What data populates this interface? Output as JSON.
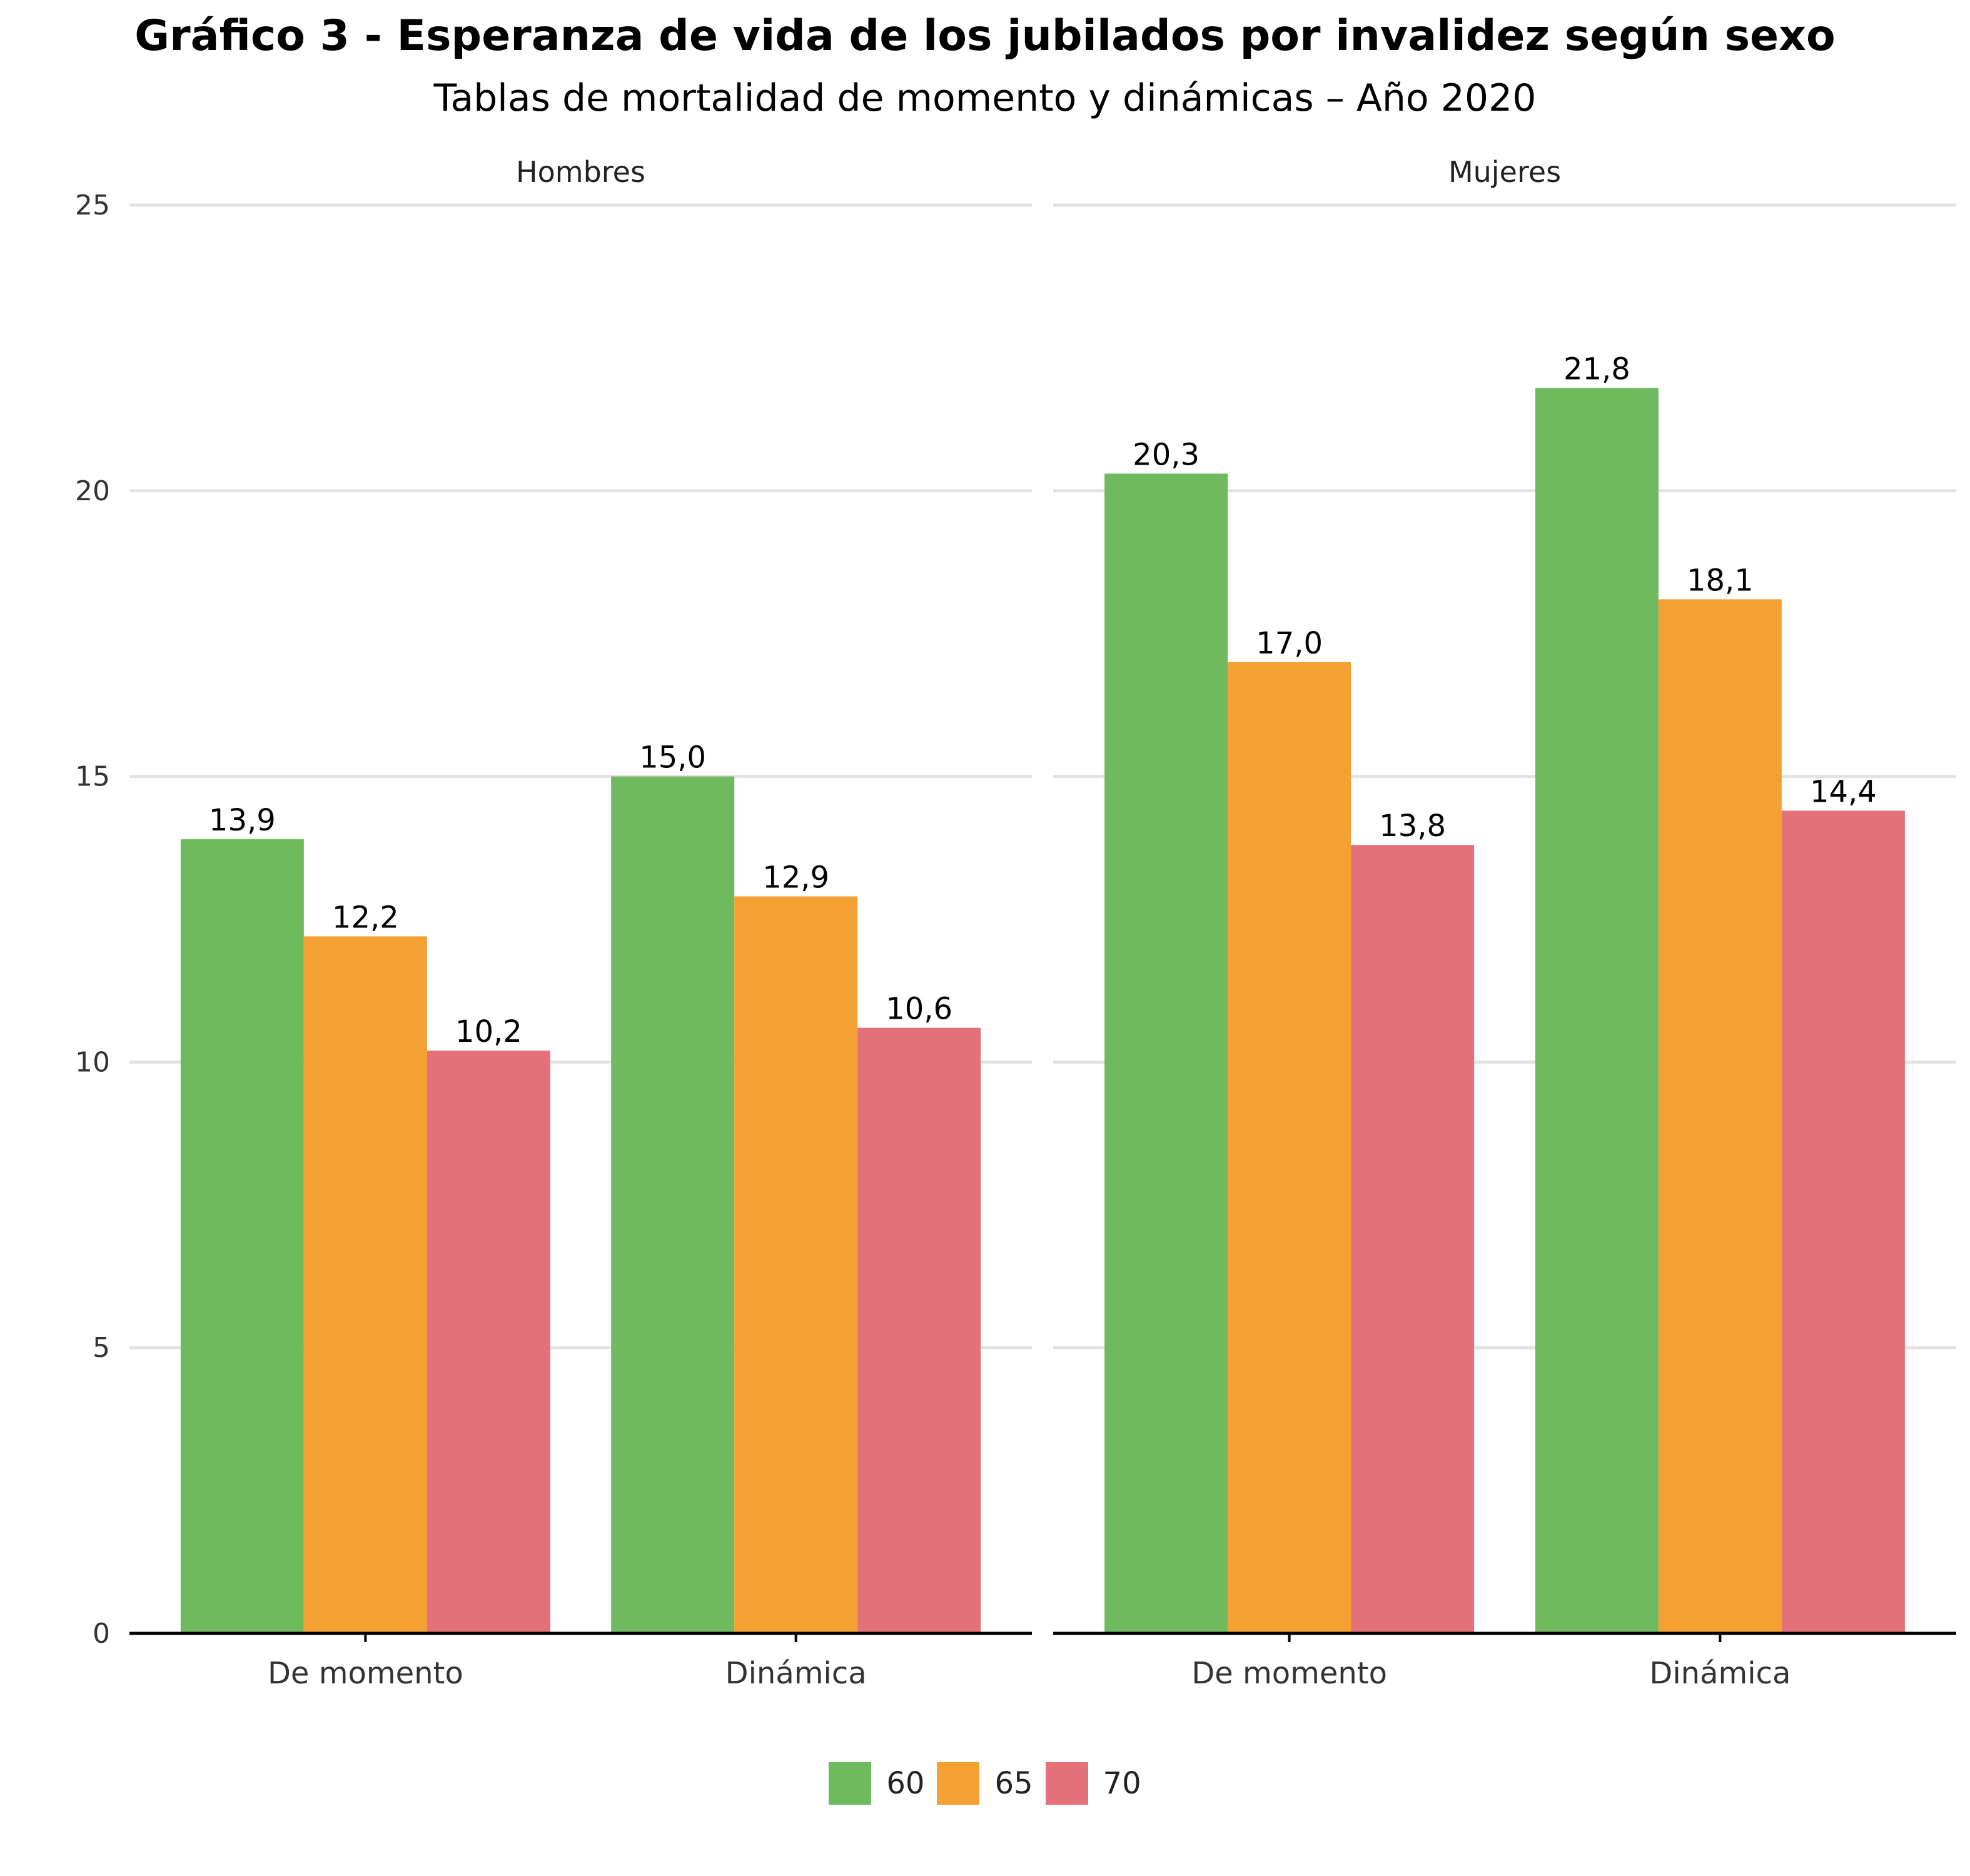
{
  "title": "Gráfico 3 - Esperanza de vida de los jubilados por invalidez según sexo",
  "subtitle": "Tablas de mortalidad de momento y dinámicas – Año 2020",
  "chart_data": {
    "type": "bar",
    "ylim": [
      0,
      25
    ],
    "yticks": [
      "0",
      "5",
      "10",
      "15",
      "20",
      "25"
    ],
    "grid": true,
    "legend_position": "bottom",
    "legend": [
      {
        "name": "60",
        "color": "#6fba5f"
      },
      {
        "name": "65",
        "color": "#f5a033"
      },
      {
        "name": "70",
        "color": "#e4707a"
      }
    ],
    "panels": [
      {
        "name": "Hombres",
        "categories": [
          "De momento",
          "Dinámica"
        ],
        "series": [
          {
            "name": "60",
            "values": [
              13.9,
              15.0
            ],
            "labels": [
              "13,9",
              "15,0"
            ]
          },
          {
            "name": "65",
            "values": [
              12.2,
              12.9
            ],
            "labels": [
              "12,2",
              "12,9"
            ]
          },
          {
            "name": "70",
            "values": [
              10.2,
              10.6
            ],
            "labels": [
              "10,2",
              "10,6"
            ]
          }
        ]
      },
      {
        "name": "Mujeres",
        "categories": [
          "De momento",
          "Dinámica"
        ],
        "series": [
          {
            "name": "60",
            "values": [
              20.3,
              21.8
            ],
            "labels": [
              "20,3",
              "21,8"
            ]
          },
          {
            "name": "65",
            "values": [
              17.0,
              18.1
            ],
            "labels": [
              "17,0",
              "18,1"
            ]
          },
          {
            "name": "70",
            "values": [
              13.8,
              14.4
            ],
            "labels": [
              "13,8",
              "14,4"
            ]
          }
        ]
      }
    ]
  }
}
